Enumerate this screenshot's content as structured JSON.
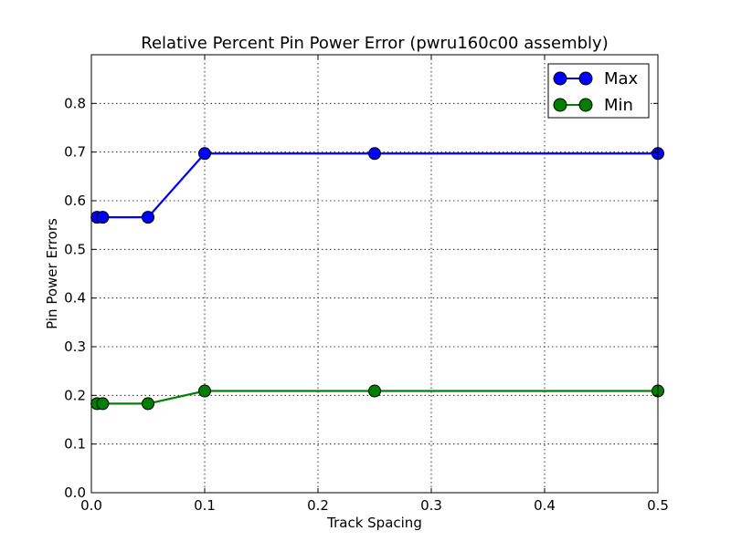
{
  "chart_data": {
    "type": "line",
    "title": "Relative Percent Pin Power Error (pwru160c00 assembly)",
    "xlabel": "Track Spacing",
    "ylabel": "Pin Power Errors",
    "xlim": [
      0.0,
      0.5
    ],
    "ylim": [
      0.0,
      0.9
    ],
    "xticks": [
      0.0,
      0.1,
      0.2,
      0.3,
      0.4,
      0.5
    ],
    "xtick_labels": [
      "0.0",
      "0.1",
      "0.2",
      "0.3",
      "0.4",
      "0.5"
    ],
    "yticks": [
      0.0,
      0.1,
      0.2,
      0.3,
      0.4,
      0.5,
      0.6,
      0.7,
      0.8
    ],
    "ytick_labels": [
      "0.0",
      "0.1",
      "0.2",
      "0.3",
      "0.4",
      "0.5",
      "0.6",
      "0.7",
      "0.8"
    ],
    "grid": true,
    "legend_position": "top-right",
    "x": [
      0.005,
      0.01,
      0.05,
      0.1,
      0.25,
      0.5
    ],
    "series": [
      {
        "name": "Max",
        "color": "#0000ff",
        "values": [
          0.566,
          0.566,
          0.566,
          0.697,
          0.697,
          0.697
        ]
      },
      {
        "name": "Min",
        "color": "#008000",
        "values": [
          0.183,
          0.183,
          0.183,
          0.209,
          0.209,
          0.209
        ]
      }
    ]
  }
}
